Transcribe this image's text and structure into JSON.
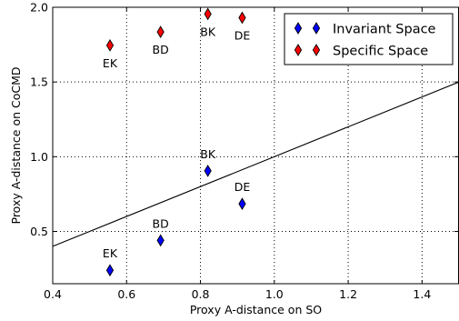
{
  "chart_data": {
    "type": "scatter",
    "xlabel": "Proxy A-distance on SO",
    "ylabel": "Proxy A-distance on CoCMD",
    "xlim": [
      0.4,
      1.5
    ],
    "ylim": [
      0.15,
      2.0
    ],
    "x_ticks": [
      0.4,
      0.6,
      0.8,
      1.0,
      1.2,
      1.4
    ],
    "y_ticks": [
      0.5,
      1.0,
      1.5,
      2.0
    ],
    "x_tick_labels": [
      "0.4",
      "0.6",
      "0.8",
      "1.0",
      "1.2",
      "1.4"
    ],
    "y_tick_labels": [
      "0.5",
      "1.0",
      "1.5",
      "2.0"
    ],
    "grid": true,
    "legend_position": "top-right",
    "series": [
      {
        "name": "Invariant Space",
        "color": "#0000ff",
        "marker": "diamond",
        "points": [
          {
            "label": "EK",
            "x": 0.555,
            "y": 0.24
          },
          {
            "label": "BD",
            "x": 0.692,
            "y": 0.44
          },
          {
            "label": "BK",
            "x": 0.82,
            "y": 0.905
          },
          {
            "label": "DE",
            "x": 0.913,
            "y": 0.685
          }
        ]
      },
      {
        "name": "Specific Space",
        "color": "#ff0000",
        "marker": "diamond",
        "points": [
          {
            "label": "EK",
            "x": 0.555,
            "y": 1.745
          },
          {
            "label": "BD",
            "x": 0.692,
            "y": 1.835
          },
          {
            "label": "BK",
            "x": 0.82,
            "y": 1.955
          },
          {
            "label": "DE",
            "x": 0.913,
            "y": 1.93
          }
        ]
      }
    ],
    "reference_line": {
      "x": [
        0.4,
        1.5
      ],
      "y": [
        0.4,
        1.5
      ]
    }
  }
}
